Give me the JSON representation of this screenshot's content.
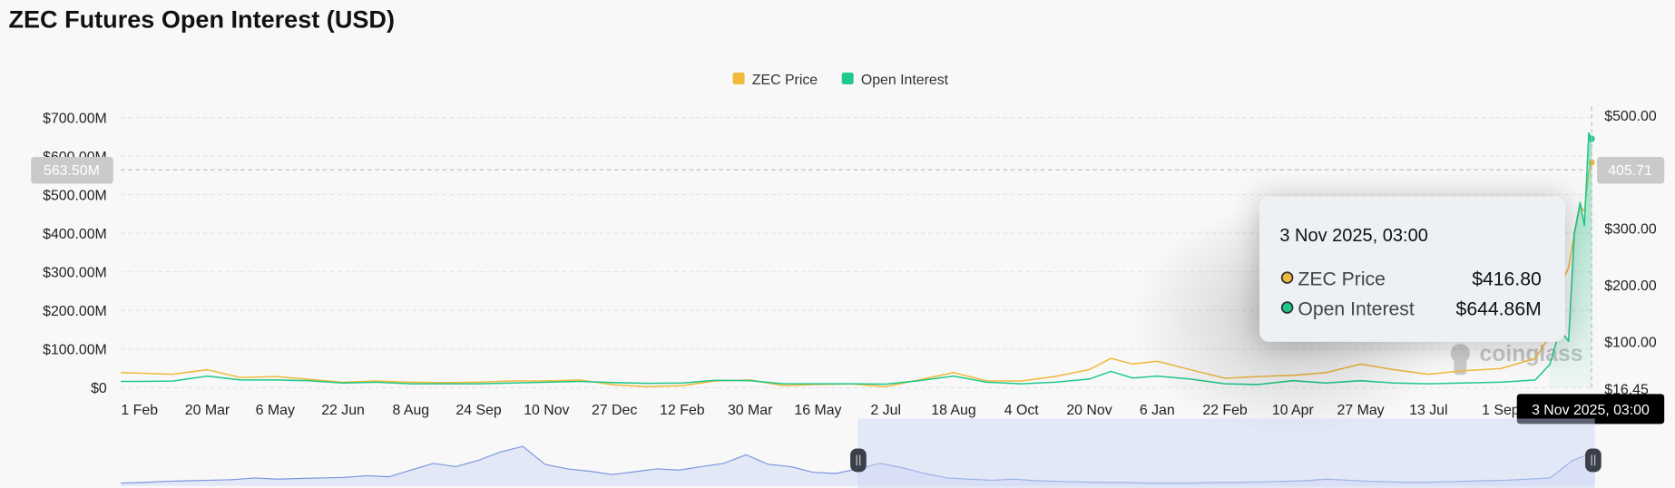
{
  "title": "ZEC Futures Open Interest (USD)",
  "legend": [
    {
      "label": "ZEC Price",
      "color": "#f0b93a"
    },
    {
      "label": "Open Interest",
      "color": "#1fc98a"
    }
  ],
  "crosshair": {
    "left_label": "563.50M",
    "right_label": "405.71",
    "date_label": "3 Nov 2025, 03:00"
  },
  "tooltip": {
    "date": "3 Nov 2025, 03:00",
    "rows": [
      {
        "label": "ZEC Price",
        "value": "$416.80",
        "color": "#f0b93a"
      },
      {
        "label": "Open Interest",
        "value": "$644.86M",
        "color": "#1fc98a"
      }
    ]
  },
  "watermark": "coinglass",
  "chart_data": {
    "type": "line",
    "y_left": {
      "ticks": [
        "$0",
        "$100.00M",
        "$200.00M",
        "$300.00M",
        "$400.00M",
        "$500.00M",
        "$600.00M",
        "$700.00M"
      ],
      "range": [
        0,
        700
      ],
      "unit": "M USD"
    },
    "y_right": {
      "ticks": [
        "$16.45",
        "$100.00",
        "$200.00",
        "$300.00",
        "$500.00"
      ],
      "range": [
        16.45,
        500
      ]
    },
    "x_ticks": [
      {
        "label": "1 Feb",
        "date": "2023-02-01"
      },
      {
        "label": "20 Mar",
        "date": "2023-03-20"
      },
      {
        "label": "6 May",
        "date": "2023-05-06"
      },
      {
        "label": "22 Jun",
        "date": "2023-06-22"
      },
      {
        "label": "8 Aug",
        "date": "2023-08-08"
      },
      {
        "label": "24 Sep",
        "date": "2023-09-24"
      },
      {
        "label": "10 Nov",
        "date": "2023-11-10"
      },
      {
        "label": "27 Dec",
        "date": "2023-12-27"
      },
      {
        "label": "12 Feb",
        "date": "2024-02-12"
      },
      {
        "label": "30 Mar",
        "date": "2024-03-30"
      },
      {
        "label": "16 May",
        "date": "2024-05-16"
      },
      {
        "label": "2 Jul",
        "date": "2024-07-02"
      },
      {
        "label": "18 Aug",
        "date": "2024-08-18"
      },
      {
        "label": "4 Oct",
        "date": "2024-10-04"
      },
      {
        "label": "20 Nov",
        "date": "2024-11-20"
      },
      {
        "label": "6 Jan",
        "date": "2025-01-06"
      },
      {
        "label": "22 Feb",
        "date": "2025-02-22"
      },
      {
        "label": "10 Apr",
        "date": "2025-04-10"
      },
      {
        "label": "27 May",
        "date": "2025-05-27"
      },
      {
        "label": "13 Jul",
        "date": "2025-07-13"
      },
      {
        "label": "1 Sep",
        "date": "2025-09-01"
      }
    ],
    "x_range": [
      "2023-01-19",
      "2025-11-03"
    ],
    "grid": true,
    "legend_position": "top-center",
    "series": [
      {
        "name": "ZEC Price",
        "axis": "right",
        "color": "#f0b93a",
        "points": [
          [
            "2023-01-19",
            45
          ],
          [
            "2023-02-01",
            44
          ],
          [
            "2023-02-24",
            42
          ],
          [
            "2023-03-20",
            50
          ],
          [
            "2023-04-12",
            36
          ],
          [
            "2023-05-06",
            38
          ],
          [
            "2023-05-29",
            33
          ],
          [
            "2023-06-22",
            28
          ],
          [
            "2023-07-15",
            30
          ],
          [
            "2023-08-08",
            28
          ],
          [
            "2023-08-31",
            27
          ],
          [
            "2023-09-24",
            28
          ],
          [
            "2023-10-17",
            30
          ],
          [
            "2023-11-10",
            30
          ],
          [
            "2023-12-03",
            32
          ],
          [
            "2023-12-27",
            23
          ],
          [
            "2024-01-19",
            20
          ],
          [
            "2024-02-12",
            22
          ],
          [
            "2024-03-06",
            30
          ],
          [
            "2024-03-30",
            32
          ],
          [
            "2024-04-22",
            22
          ],
          [
            "2024-05-16",
            24
          ],
          [
            "2024-06-08",
            25
          ],
          [
            "2024-07-02",
            20
          ],
          [
            "2024-07-25",
            32
          ],
          [
            "2024-08-18",
            45
          ],
          [
            "2024-09-10",
            30
          ],
          [
            "2024-10-04",
            30
          ],
          [
            "2024-10-27",
            38
          ],
          [
            "2024-11-20",
            50
          ],
          [
            "2024-12-05",
            70
          ],
          [
            "2024-12-20",
            60
          ],
          [
            "2025-01-06",
            65
          ],
          [
            "2025-01-29",
            50
          ],
          [
            "2025-02-22",
            35
          ],
          [
            "2025-03-17",
            38
          ],
          [
            "2025-04-10",
            40
          ],
          [
            "2025-05-03",
            45
          ],
          [
            "2025-05-27",
            60
          ],
          [
            "2025-06-19",
            50
          ],
          [
            "2025-07-13",
            42
          ],
          [
            "2025-08-05",
            48
          ],
          [
            "2025-09-01",
            52
          ],
          [
            "2025-09-25",
            70
          ],
          [
            "2025-10-05",
            110
          ],
          [
            "2025-10-12",
            200
          ],
          [
            "2025-10-18",
            230
          ],
          [
            "2025-10-22",
            290
          ],
          [
            "2025-10-26",
            340
          ],
          [
            "2025-10-29",
            330
          ],
          [
            "2025-11-01",
            400
          ],
          [
            "2025-11-03",
            416.8
          ]
        ]
      },
      {
        "name": "Open Interest",
        "axis": "left",
        "color": "#1fc98a",
        "points": [
          [
            "2023-01-19",
            16
          ],
          [
            "2023-02-01",
            16
          ],
          [
            "2023-02-24",
            17
          ],
          [
            "2023-03-20",
            30
          ],
          [
            "2023-04-12",
            20
          ],
          [
            "2023-05-06",
            20
          ],
          [
            "2023-05-29",
            18
          ],
          [
            "2023-06-22",
            12
          ],
          [
            "2023-07-15",
            14
          ],
          [
            "2023-08-08",
            10
          ],
          [
            "2023-08-31",
            10
          ],
          [
            "2023-09-24",
            10
          ],
          [
            "2023-10-17",
            12
          ],
          [
            "2023-11-10",
            14
          ],
          [
            "2023-12-03",
            16
          ],
          [
            "2023-12-27",
            13
          ],
          [
            "2024-01-19",
            11
          ],
          [
            "2024-02-12",
            12
          ],
          [
            "2024-03-06",
            19
          ],
          [
            "2024-03-30",
            18
          ],
          [
            "2024-04-22",
            10
          ],
          [
            "2024-05-16",
            10
          ],
          [
            "2024-06-08",
            10
          ],
          [
            "2024-07-02",
            9
          ],
          [
            "2024-07-25",
            18
          ],
          [
            "2024-08-18",
            30
          ],
          [
            "2024-09-10",
            14
          ],
          [
            "2024-10-04",
            10
          ],
          [
            "2024-10-27",
            14
          ],
          [
            "2024-11-20",
            22
          ],
          [
            "2024-12-05",
            42
          ],
          [
            "2024-12-20",
            25
          ],
          [
            "2025-01-06",
            30
          ],
          [
            "2025-01-29",
            22
          ],
          [
            "2025-02-22",
            10
          ],
          [
            "2025-03-17",
            8
          ],
          [
            "2025-04-10",
            18
          ],
          [
            "2025-05-03",
            12
          ],
          [
            "2025-05-27",
            18
          ],
          [
            "2025-06-19",
            12
          ],
          [
            "2025-07-13",
            10
          ],
          [
            "2025-08-05",
            12
          ],
          [
            "2025-09-01",
            14
          ],
          [
            "2025-09-25",
            20
          ],
          [
            "2025-10-05",
            60
          ],
          [
            "2025-10-12",
            150
          ],
          [
            "2025-10-18",
            120
          ],
          [
            "2025-10-22",
            400
          ],
          [
            "2025-10-26",
            480
          ],
          [
            "2025-10-29",
            420
          ],
          [
            "2025-11-01",
            660
          ],
          [
            "2025-11-03",
            644.86
          ]
        ]
      }
    ],
    "navigator": {
      "values": [
        5,
        6,
        8,
        9,
        10,
        11,
        14,
        12,
        13,
        14,
        15,
        18,
        16,
        28,
        40,
        34,
        45,
        60,
        70,
        38,
        30,
        26,
        20,
        25,
        30,
        28,
        34,
        40,
        55,
        38,
        34,
        24,
        22,
        30,
        40,
        32,
        22,
        14,
        12,
        10,
        12,
        9,
        8,
        7,
        6,
        6,
        5,
        5,
        5,
        6,
        6,
        7,
        8,
        9,
        12,
        10,
        8,
        7,
        6,
        7,
        8,
        9,
        10,
        12,
        14,
        45,
        60
      ],
      "selection_start": "2023-01-19",
      "selection_end": "2025-11-03"
    }
  }
}
